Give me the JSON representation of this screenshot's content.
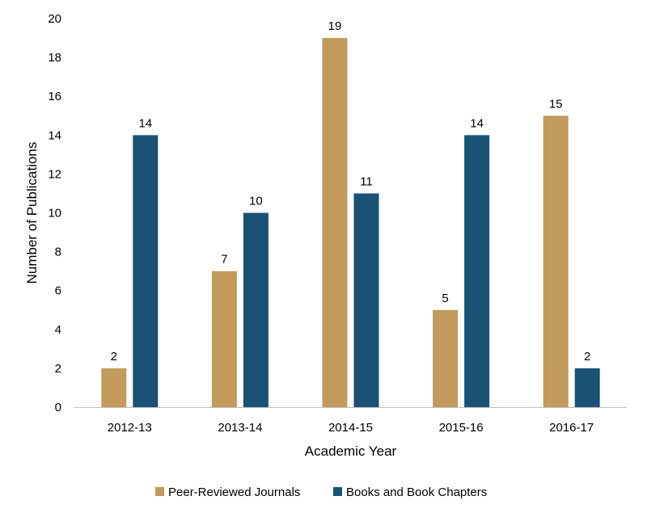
{
  "chart_data": {
    "type": "bar",
    "categories": [
      "2012-13",
      "2013-14",
      "2014-15",
      "2015-16",
      "2016-17"
    ],
    "series": [
      {
        "name": "Peer-Reviewed Journals",
        "values": [
          2,
          7,
          19,
          5,
          15
        ],
        "color": "#C29A5B"
      },
      {
        "name": "Books and Book Chapters",
        "values": [
          14,
          10,
          11,
          14,
          2
        ],
        "color": "#1A5276"
      }
    ],
    "title": "",
    "xlabel": "Academic Year",
    "ylabel": "Number of Publications",
    "ylim": [
      0,
      20
    ],
    "yticks": [
      0,
      2,
      4,
      6,
      8,
      10,
      12,
      14,
      16,
      18,
      20
    ],
    "grid": false,
    "legend_position": "bottom",
    "axis_color": "#BFBFBF"
  }
}
